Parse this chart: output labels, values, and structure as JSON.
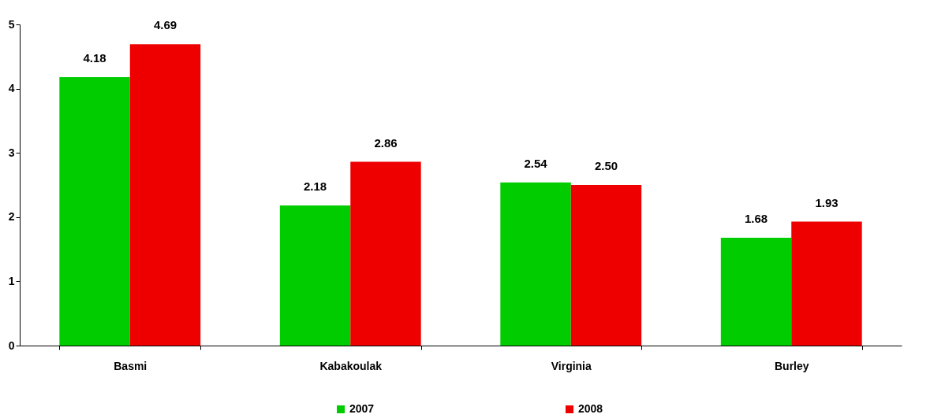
{
  "chart_data": {
    "type": "bar",
    "categories": [
      "Basmi",
      "Kabakoulak",
      "Virginia",
      "Burley"
    ],
    "series": [
      {
        "name": "2007",
        "color": "#00cc00",
        "values": [
          4.18,
          2.18,
          2.54,
          1.68
        ],
        "value_labels": [
          "4.18",
          "2.18",
          "2.54",
          "1.68"
        ]
      },
      {
        "name": "2008",
        "color": "#ee0000",
        "values": [
          4.69,
          2.86,
          2.5,
          1.93
        ],
        "value_labels": [
          "4.69",
          "2.86",
          "2.50",
          "1.93"
        ]
      }
    ],
    "ylim": [
      0,
      5
    ],
    "yticks": [
      0,
      1,
      2,
      3,
      4,
      5
    ],
    "legend": "bottom"
  }
}
